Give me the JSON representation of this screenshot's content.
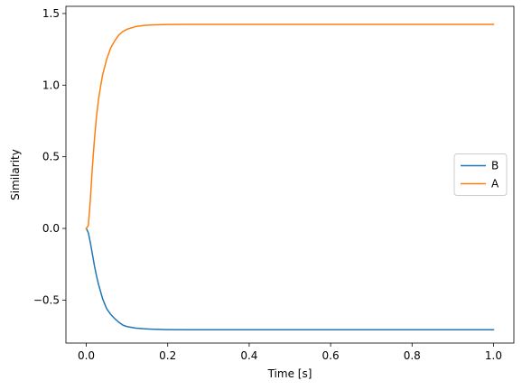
{
  "chart_data": {
    "type": "line",
    "title": "",
    "xlabel": "Time [s]",
    "ylabel": "Similarity",
    "xlim": [
      -0.05,
      1.05
    ],
    "ylim": [
      -0.8,
      1.55
    ],
    "xticks": [
      0.0,
      0.2,
      0.4,
      0.6,
      0.8,
      1.0
    ],
    "xtick_labels": [
      "0.0",
      "0.2",
      "0.4",
      "0.6",
      "0.8",
      "1.0"
    ],
    "yticks": [
      -0.5,
      0.0,
      0.5,
      1.0,
      1.5
    ],
    "ytick_labels": [
      "−0.5",
      "0.0",
      "0.5",
      "1.0",
      "1.5"
    ],
    "grid": false,
    "legend_position": "center-right",
    "series": [
      {
        "name": "B",
        "color": "#1f77b4",
        "x": [
          0.0,
          0.005,
          0.01,
          0.015,
          0.02,
          0.025,
          0.03,
          0.035,
          0.04,
          0.05,
          0.06,
          0.07,
          0.08,
          0.09,
          0.1,
          0.12,
          0.14,
          0.16,
          0.18,
          0.2,
          0.25,
          0.3,
          0.4,
          0.5,
          0.6,
          0.7,
          0.8,
          0.9,
          1.0
        ],
        "y": [
          0.0,
          -0.03,
          -0.1,
          -0.18,
          -0.26,
          -0.33,
          -0.39,
          -0.44,
          -0.49,
          -0.56,
          -0.6,
          -0.63,
          -0.655,
          -0.675,
          -0.685,
          -0.695,
          -0.7,
          -0.703,
          -0.705,
          -0.706,
          -0.707,
          -0.707,
          -0.707,
          -0.707,
          -0.707,
          -0.707,
          -0.707,
          -0.707,
          -0.707
        ]
      },
      {
        "name": "A",
        "color": "#ff7f0e",
        "x": [
          0.0,
          0.005,
          0.01,
          0.015,
          0.02,
          0.025,
          0.03,
          0.035,
          0.04,
          0.05,
          0.06,
          0.07,
          0.08,
          0.09,
          0.1,
          0.12,
          0.14,
          0.16,
          0.18,
          0.2,
          0.25,
          0.3,
          0.4,
          0.5,
          0.6,
          0.7,
          0.8,
          0.9,
          1.0
        ],
        "y": [
          0.0,
          0.02,
          0.2,
          0.43,
          0.62,
          0.78,
          0.9,
          0.99,
          1.07,
          1.18,
          1.26,
          1.31,
          1.35,
          1.375,
          1.39,
          1.408,
          1.416,
          1.42,
          1.422,
          1.423,
          1.424,
          1.424,
          1.424,
          1.424,
          1.424,
          1.424,
          1.424,
          1.424,
          1.424
        ]
      }
    ]
  }
}
